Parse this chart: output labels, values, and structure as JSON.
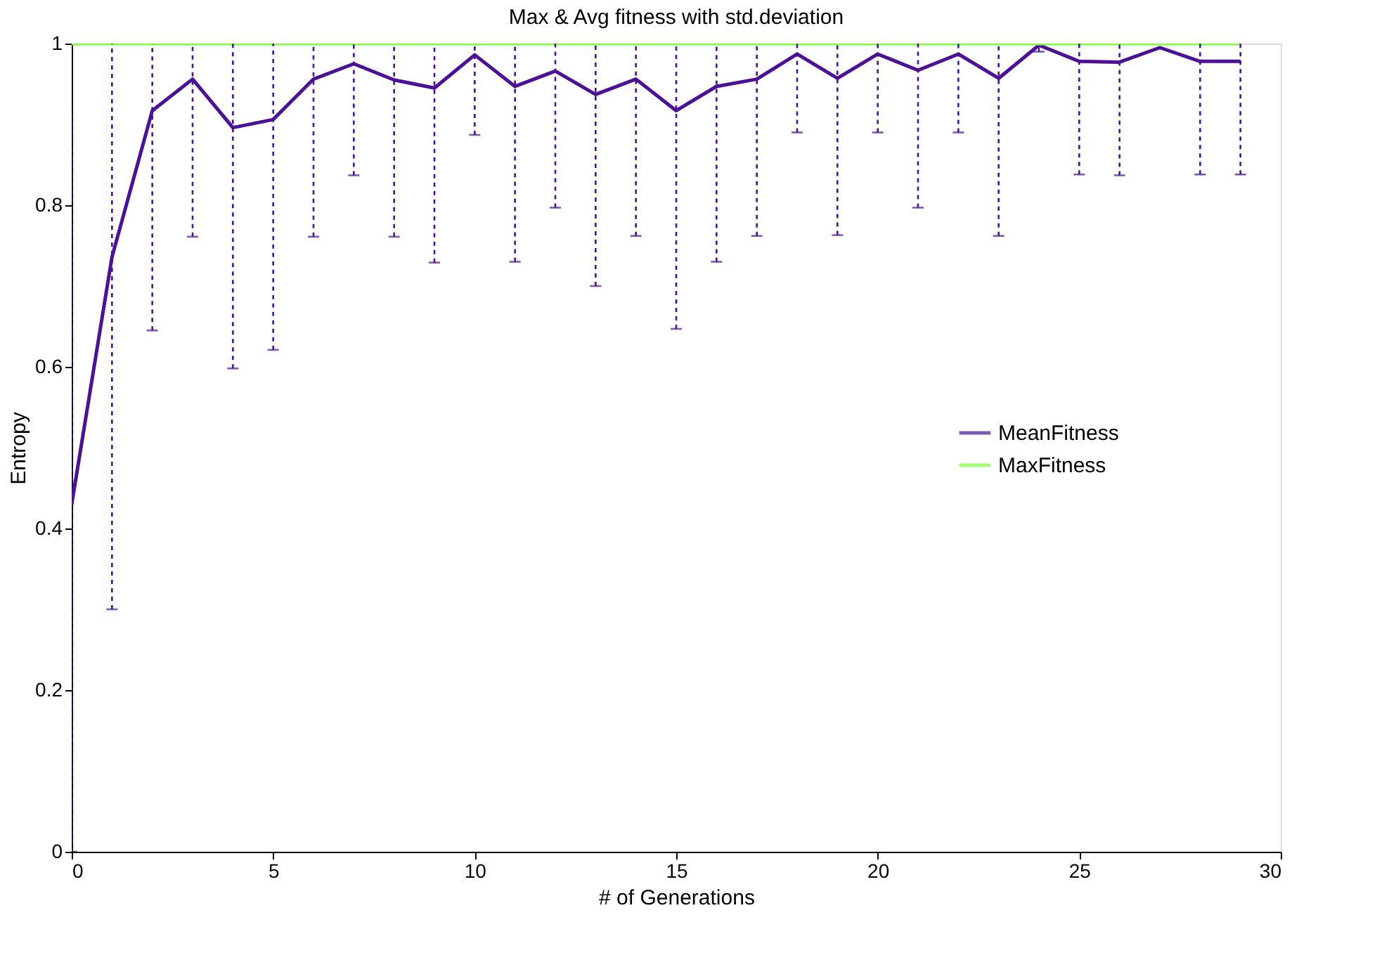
{
  "chart_data": {
    "type": "line",
    "title": "Max & Avg fitness with std.deviation",
    "xlabel": "# of Generations",
    "ylabel": "Entropy",
    "x": [
      0,
      1,
      2,
      3,
      4,
      5,
      6,
      7,
      8,
      9,
      10,
      11,
      12,
      13,
      14,
      15,
      16,
      17,
      18,
      19,
      20,
      21,
      22,
      23,
      24,
      25,
      26,
      27,
      28,
      29
    ],
    "series": [
      {
        "name": "MeanFitness",
        "color": "#4b1196",
        "values": [
          0.43,
          0.736,
          0.917,
          0.956,
          0.896,
          0.906,
          0.956,
          0.975,
          0.955,
          0.945,
          0.986,
          0.947,
          0.966,
          0.937,
          0.956,
          0.917,
          0.947,
          0.956,
          0.987,
          0.957,
          0.987,
          0.967,
          0.987,
          0.957,
          0.998,
          0.978,
          0.977,
          0.995,
          0.978,
          0.978
        ],
        "errors": [
          [
            0,
            0.92
          ],
          [
            0.3,
            1
          ],
          [
            0.645,
            1
          ],
          [
            0.761,
            1
          ],
          [
            0.598,
            1
          ],
          [
            0.621,
            1
          ],
          [
            0.761,
            1
          ],
          [
            0.837,
            1
          ],
          [
            0.761,
            1
          ],
          [
            0.729,
            1
          ],
          [
            0.887,
            1
          ],
          [
            0.73,
            1
          ],
          [
            0.797,
            1
          ],
          [
            0.7,
            1
          ],
          [
            0.762,
            1
          ],
          [
            0.647,
            1
          ],
          [
            0.73,
            1
          ],
          [
            0.762,
            1
          ],
          [
            0.89,
            1
          ],
          [
            0.763,
            1
          ],
          [
            0.89,
            1
          ],
          [
            0.797,
            1
          ],
          [
            0.89,
            1
          ],
          [
            0.762,
            1
          ],
          [
            0.99,
            1
          ],
          [
            0.838,
            1
          ],
          [
            0.837,
            1
          ],
          null,
          [
            0.838,
            1
          ],
          [
            0.838,
            1
          ]
        ]
      },
      {
        "name": "MaxFitness",
        "color": "#7fff3a",
        "values": [
          1,
          1,
          1,
          1,
          1,
          1,
          1,
          1,
          1,
          1,
          1,
          1,
          1,
          1,
          1,
          1,
          1,
          1,
          1,
          1,
          1,
          1,
          1,
          1,
          1,
          1,
          1,
          1,
          1,
          1
        ]
      }
    ],
    "xlim": [
      0,
      30
    ],
    "xticks": [
      0,
      5,
      10,
      15,
      20,
      25,
      30
    ],
    "ylim": [
      0,
      1
    ],
    "yticks": [
      0,
      0.2,
      0.4,
      0.6,
      0.8,
      1
    ],
    "legend": "right",
    "grid": false,
    "marker": "none",
    "line_style": "solid"
  }
}
